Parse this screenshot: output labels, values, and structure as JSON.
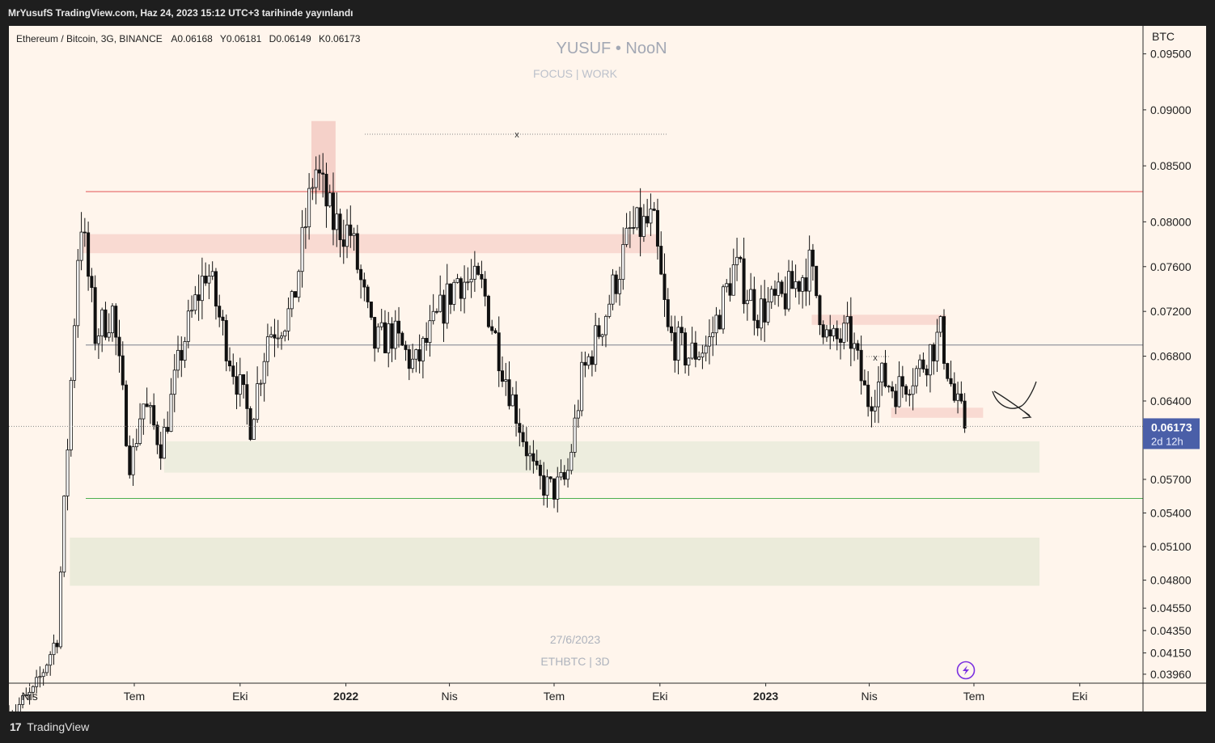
{
  "header": {
    "publish_text": "MrYusufS TradingView.com, Haz 24, 2023 15:12 UTC+3 tarihinde yayınlandı"
  },
  "footer": {
    "brand": "TradingView",
    "logo_icon": "tradingview-logo-icon"
  },
  "legend": {
    "symbol": "Ethereum / Bitcoin, 3G, BINANCE",
    "open": "A0.06168",
    "high": "Y0.06181",
    "low": "D0.06149",
    "close": "K0.06173"
  },
  "watermark": {
    "title": "YUSUF • NooN",
    "subtitle": "FOCUS | WORK",
    "date": "27/6/2023",
    "ticker": "ETHBTC | 3D"
  },
  "price_axis": {
    "currency": "BTC",
    "current_price": "0.06173",
    "countdown": "2d 12h",
    "current_color": "#4a5fa8"
  },
  "chart_data": {
    "type": "candlestick",
    "title": "Ethereum / Bitcoin, 3G, BINANCE",
    "ylabel": "BTC",
    "ylim": [
      0.0388,
      0.0975
    ],
    "xlim": [
      "2021-03-14",
      "2023-11-25"
    ],
    "y_ticks": [
      "0.09500",
      "0.09000",
      "0.08500",
      "0.08000",
      "0.07600",
      "0.07200",
      "0.06800",
      "0.06400",
      "0.05700",
      "0.05400",
      "0.05100",
      "0.04800",
      "0.04550",
      "0.04350",
      "0.04150",
      "0.03960"
    ],
    "x_ticks": [
      {
        "label": "Nis",
        "date": "2021-04-01"
      },
      {
        "label": "Tem",
        "date": "2021-07-01"
      },
      {
        "label": "Eki",
        "date": "2021-10-01"
      },
      {
        "label": "2022",
        "date": "2022-01-01",
        "bold": true
      },
      {
        "label": "Nis",
        "date": "2022-04-01"
      },
      {
        "label": "Tem",
        "date": "2022-07-01"
      },
      {
        "label": "Eki",
        "date": "2022-10-01"
      },
      {
        "label": "2023",
        "date": "2023-01-01",
        "bold": true
      },
      {
        "label": "Nis",
        "date": "2023-04-01"
      },
      {
        "label": "Tem",
        "date": "2023-07-01"
      },
      {
        "label": "Eki",
        "date": "2023-10-01"
      }
    ],
    "candle_interval_days": 3,
    "anchors": [
      [
        "2021-03-14",
        0.036
      ],
      [
        "2021-04-05",
        0.038
      ],
      [
        "2021-04-25",
        0.043
      ],
      [
        "2021-05-05",
        0.062
      ],
      [
        "2021-05-15",
        0.081
      ],
      [
        "2021-05-28",
        0.07
      ],
      [
        "2021-06-12",
        0.072
      ],
      [
        "2021-06-28",
        0.058
      ],
      [
        "2021-07-08",
        0.064
      ],
      [
        "2021-07-25",
        0.06
      ],
      [
        "2021-08-12",
        0.069
      ],
      [
        "2021-09-02",
        0.076
      ],
      [
        "2021-09-14",
        0.071
      ],
      [
        "2021-09-28",
        0.066
      ],
      [
        "2021-10-10",
        0.062
      ],
      [
        "2021-10-25",
        0.07
      ],
      [
        "2021-11-15",
        0.072
      ],
      [
        "2021-12-05",
        0.085
      ],
      [
        "2021-12-20",
        0.08
      ],
      [
        "2022-01-05",
        0.079
      ],
      [
        "2022-01-25",
        0.069
      ],
      [
        "2022-02-10",
        0.07
      ],
      [
        "2022-03-02",
        0.067
      ],
      [
        "2022-03-20",
        0.071
      ],
      [
        "2022-04-08",
        0.075
      ],
      [
        "2022-04-30",
        0.074
      ],
      [
        "2022-05-15",
        0.068
      ],
      [
        "2022-06-15",
        0.057
      ],
      [
        "2022-06-30",
        0.056
      ],
      [
        "2022-07-12",
        0.057
      ],
      [
        "2022-07-25",
        0.066
      ],
      [
        "2022-08-15",
        0.072
      ],
      [
        "2022-09-05",
        0.079
      ],
      [
        "2022-09-25",
        0.08
      ],
      [
        "2022-10-08",
        0.07
      ],
      [
        "2022-10-25",
        0.068
      ],
      [
        "2022-11-12",
        0.069
      ],
      [
        "2022-12-05",
        0.076
      ],
      [
        "2022-12-25",
        0.072
      ],
      [
        "2023-01-15",
        0.073
      ],
      [
        "2023-02-08",
        0.076
      ],
      [
        "2023-02-25",
        0.069
      ],
      [
        "2023-03-15",
        0.07
      ],
      [
        "2023-03-30",
        0.064
      ],
      [
        "2023-04-12",
        0.066
      ],
      [
        "2023-04-25",
        0.065
      ],
      [
        "2023-05-15",
        0.067
      ],
      [
        "2023-06-02",
        0.07
      ],
      [
        "2023-06-14",
        0.064
      ],
      [
        "2023-06-24",
        0.0617
      ]
    ],
    "horizontal_lines": [
      {
        "price": 0.0827,
        "color": "#e05353"
      },
      {
        "price": 0.069,
        "color": "#7a7f8c"
      },
      {
        "price": 0.0553,
        "color": "#4caf50"
      }
    ],
    "zones": [
      {
        "from": "2021-05-15",
        "to": "2022-09-29",
        "low": 0.0772,
        "high": 0.0789,
        "color": "#f7d3cc"
      },
      {
        "from": "2021-12-02",
        "to": "2021-12-23",
        "low": 0.0825,
        "high": 0.089,
        "color": "#f2c8c0"
      },
      {
        "from": "2023-02-10",
        "to": "2023-06-07",
        "low": 0.0708,
        "high": 0.0717,
        "color": "#f7d3cc"
      },
      {
        "from": "2023-04-20",
        "to": "2023-07-09",
        "low": 0.0625,
        "high": 0.0634,
        "color": "#f7d3cc"
      },
      {
        "from": "2021-07-27",
        "to": "2023-08-27",
        "low": 0.0576,
        "high": 0.0604,
        "color": "#e9ebdb"
      },
      {
        "from": "2021-05-06",
        "to": "2023-08-27",
        "low": 0.0475,
        "high": 0.0518,
        "color": "#e6e8d6"
      }
    ]
  }
}
